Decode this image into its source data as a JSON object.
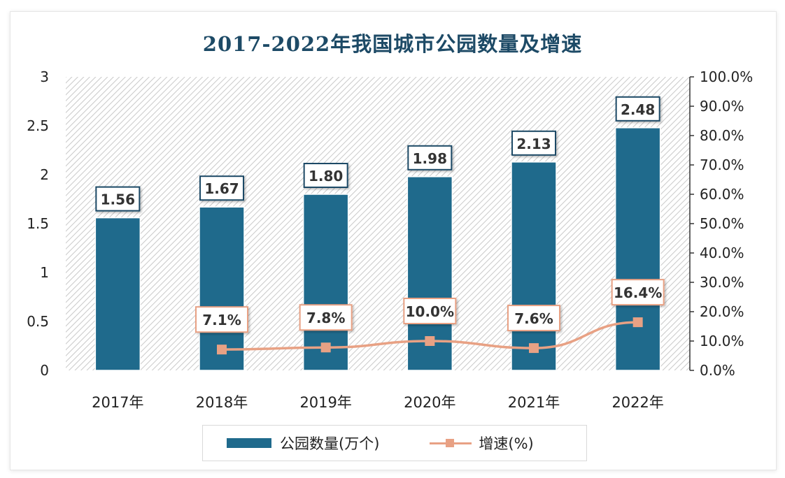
{
  "chart_data": {
    "type": "bar+line",
    "title": "2017-2022年我国城市公园数量及增速",
    "categories": [
      "2017年",
      "2018年",
      "2019年",
      "2020年",
      "2021年",
      "2022年"
    ],
    "series": [
      {
        "name": "公园数量(万个)",
        "type": "bar",
        "axis": "left",
        "values": [
          1.56,
          1.67,
          1.8,
          1.98,
          2.13,
          2.48
        ],
        "labels": [
          "1.56",
          "1.67",
          "1.80",
          "1.98",
          "2.13",
          "2.48"
        ]
      },
      {
        "name": "增速(%)",
        "type": "line",
        "axis": "right",
        "values": [
          null,
          7.1,
          7.8,
          10.0,
          7.6,
          16.4
        ],
        "labels": [
          "",
          "7.1%",
          "7.8%",
          "10.0%",
          "7.6%",
          "16.4%"
        ]
      }
    ],
    "y_left": {
      "min": 0,
      "max": 3,
      "ticks": [
        "0",
        "0.5",
        "1",
        "1.5",
        "2",
        "2.5",
        "3"
      ]
    },
    "y_right": {
      "min": 0,
      "max": 100,
      "ticks": [
        "0.0%",
        "10.0%",
        "20.0%",
        "30.0%",
        "40.0%",
        "50.0%",
        "60.0%",
        "70.0%",
        "80.0%",
        "90.0%",
        "100.0%"
      ]
    },
    "legend_position": "bottom",
    "colors": {
      "bar": "#1f6a8c",
      "line": "#e8a184",
      "bar_label_border": "#1d4a66",
      "line_label_border": "#e8a184",
      "title": "#1d4a66"
    }
  },
  "legend": {
    "bar_label": "公园数量(万个)",
    "line_label": "增速(%)"
  }
}
